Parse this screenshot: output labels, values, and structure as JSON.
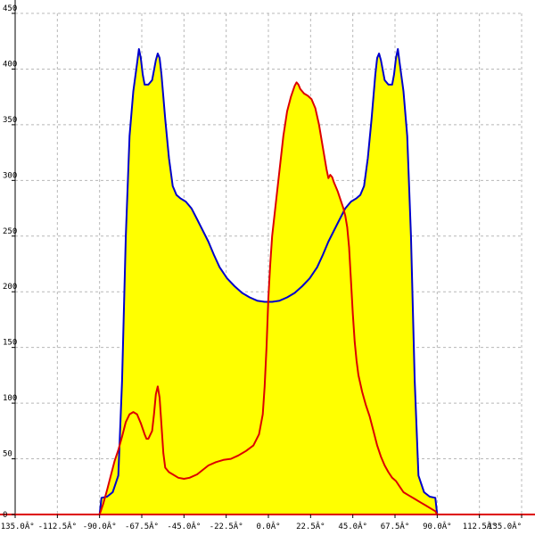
{
  "chart_data": {
    "type": "area",
    "title": "",
    "xlabel": "",
    "ylabel": "",
    "xlim": [
      -135,
      135
    ],
    "ylim": [
      0,
      450
    ],
    "grid": true,
    "x_ticks": [
      -135,
      -112.5,
      -90,
      -67.5,
      -45,
      -22.5,
      0,
      22.5,
      45,
      67.5,
      90,
      112.5,
      135
    ],
    "x_tick_labels": [
      "-135.0Â°",
      "-112.5Â°",
      "-90.0Â°",
      "-67.5Â°",
      "-45.0Â°",
      "-22.5Â°",
      "0.0Â°",
      "22.5Â°",
      "45.0Â°",
      "67.5Â°",
      "90.0Â°",
      "112.5Â°",
      "135.0Â°"
    ],
    "y_ticks": [
      0,
      50,
      100,
      150,
      200,
      250,
      300,
      350,
      400,
      450
    ],
    "y_tick_labels": [
      "0",
      "50",
      "100",
      "150",
      "200",
      "250",
      "300",
      "350",
      "400",
      "450"
    ],
    "fill_color": "#ffff00",
    "series": [
      {
        "color": "#0000cc",
        "points": [
          [
            -90,
            0
          ],
          [
            -89,
            15
          ],
          [
            -86,
            16
          ],
          [
            -83,
            20
          ],
          [
            -80,
            35
          ],
          [
            -78,
            120
          ],
          [
            -76,
            250
          ],
          [
            -74,
            340
          ],
          [
            -72,
            380
          ],
          [
            -70,
            405
          ],
          [
            -69,
            418
          ],
          [
            -68,
            410
          ],
          [
            -67,
            395
          ],
          [
            -66,
            386
          ],
          [
            -64,
            386
          ],
          [
            -62,
            390
          ],
          [
            -60,
            408
          ],
          [
            -59,
            414
          ],
          [
            -58,
            410
          ],
          [
            -57,
            395
          ],
          [
            -55,
            355
          ],
          [
            -53,
            320
          ],
          [
            -51,
            295
          ],
          [
            -49,
            287
          ],
          [
            -47,
            284
          ],
          [
            -44,
            281
          ],
          [
            -41,
            275
          ],
          [
            -38,
            265
          ],
          [
            -35,
            255
          ],
          [
            -32,
            245
          ],
          [
            -29,
            233
          ],
          [
            -26,
            222
          ],
          [
            -22,
            212
          ],
          [
            -18,
            205
          ],
          [
            -14,
            199
          ],
          [
            -10,
            195
          ],
          [
            -6,
            192
          ],
          [
            -2,
            191
          ],
          [
            0,
            191
          ],
          [
            2,
            191
          ],
          [
            6,
            192
          ],
          [
            10,
            195
          ],
          [
            14,
            199
          ],
          [
            18,
            205
          ],
          [
            22,
            212
          ],
          [
            26,
            222
          ],
          [
            29,
            233
          ],
          [
            32,
            245
          ],
          [
            35,
            255
          ],
          [
            38,
            265
          ],
          [
            41,
            275
          ],
          [
            44,
            281
          ],
          [
            47,
            284
          ],
          [
            49,
            287
          ],
          [
            51,
            295
          ],
          [
            53,
            320
          ],
          [
            55,
            355
          ],
          [
            57,
            395
          ],
          [
            58,
            410
          ],
          [
            59,
            414
          ],
          [
            60,
            408
          ],
          [
            62,
            390
          ],
          [
            64,
            386
          ],
          [
            66,
            386
          ],
          [
            67,
            395
          ],
          [
            68,
            410
          ],
          [
            69,
            418
          ],
          [
            70,
            405
          ],
          [
            72,
            380
          ],
          [
            74,
            340
          ],
          [
            76,
            250
          ],
          [
            78,
            120
          ],
          [
            80,
            35
          ],
          [
            83,
            20
          ],
          [
            86,
            16
          ],
          [
            89,
            15
          ],
          [
            90,
            0
          ]
        ]
      },
      {
        "color": "#dd0000",
        "points": [
          [
            -90,
            0
          ],
          [
            -88,
            10
          ],
          [
            -86,
            22
          ],
          [
            -84,
            35
          ],
          [
            -82,
            48
          ],
          [
            -80,
            58
          ],
          [
            -78,
            70
          ],
          [
            -76,
            83
          ],
          [
            -74,
            90
          ],
          [
            -72,
            92
          ],
          [
            -70,
            90
          ],
          [
            -68,
            82
          ],
          [
            -66,
            72
          ],
          [
            -65,
            68
          ],
          [
            -64,
            68
          ],
          [
            -62,
            75
          ],
          [
            -61,
            90
          ],
          [
            -60,
            108
          ],
          [
            -59,
            115
          ],
          [
            -58,
            105
          ],
          [
            -57,
            80
          ],
          [
            -56,
            55
          ],
          [
            -55,
            42
          ],
          [
            -53,
            38
          ],
          [
            -51,
            36
          ],
          [
            -48,
            33
          ],
          [
            -45,
            32
          ],
          [
            -42,
            33
          ],
          [
            -38,
            36
          ],
          [
            -35,
            40
          ],
          [
            -32,
            44
          ],
          [
            -28,
            47
          ],
          [
            -24,
            49
          ],
          [
            -20,
            50
          ],
          [
            -16,
            53
          ],
          [
            -12,
            57
          ],
          [
            -8,
            62
          ],
          [
            -5,
            72
          ],
          [
            -3,
            90
          ],
          [
            -2,
            115
          ],
          [
            -1,
            150
          ],
          [
            0,
            195
          ],
          [
            1,
            225
          ],
          [
            2,
            250
          ],
          [
            4,
            280
          ],
          [
            6,
            310
          ],
          [
            8,
            340
          ],
          [
            10,
            362
          ],
          [
            12,
            375
          ],
          [
            14,
            385
          ],
          [
            15,
            388
          ],
          [
            16,
            386
          ],
          [
            17,
            382
          ],
          [
            19,
            378
          ],
          [
            21,
            376
          ],
          [
            23,
            373
          ],
          [
            25,
            365
          ],
          [
            27,
            350
          ],
          [
            29,
            330
          ],
          [
            31,
            310
          ],
          [
            32,
            302
          ],
          [
            33,
            305
          ],
          [
            34,
            303
          ],
          [
            35,
            298
          ],
          [
            37,
            290
          ],
          [
            39,
            280
          ],
          [
            40,
            275
          ],
          [
            41,
            268
          ],
          [
            42,
            258
          ],
          [
            43,
            240
          ],
          [
            44,
            210
          ],
          [
            45,
            180
          ],
          [
            46,
            155
          ],
          [
            47,
            138
          ],
          [
            48,
            125
          ],
          [
            50,
            110
          ],
          [
            52,
            98
          ],
          [
            54,
            88
          ],
          [
            56,
            75
          ],
          [
            58,
            62
          ],
          [
            60,
            52
          ],
          [
            62,
            44
          ],
          [
            64,
            38
          ],
          [
            66,
            33
          ],
          [
            68,
            30
          ],
          [
            70,
            25
          ],
          [
            72,
            20
          ],
          [
            75,
            17
          ],
          [
            78,
            14
          ],
          [
            81,
            11
          ],
          [
            84,
            8
          ],
          [
            87,
            5
          ],
          [
            89,
            3
          ],
          [
            90,
            0
          ]
        ]
      }
    ]
  }
}
